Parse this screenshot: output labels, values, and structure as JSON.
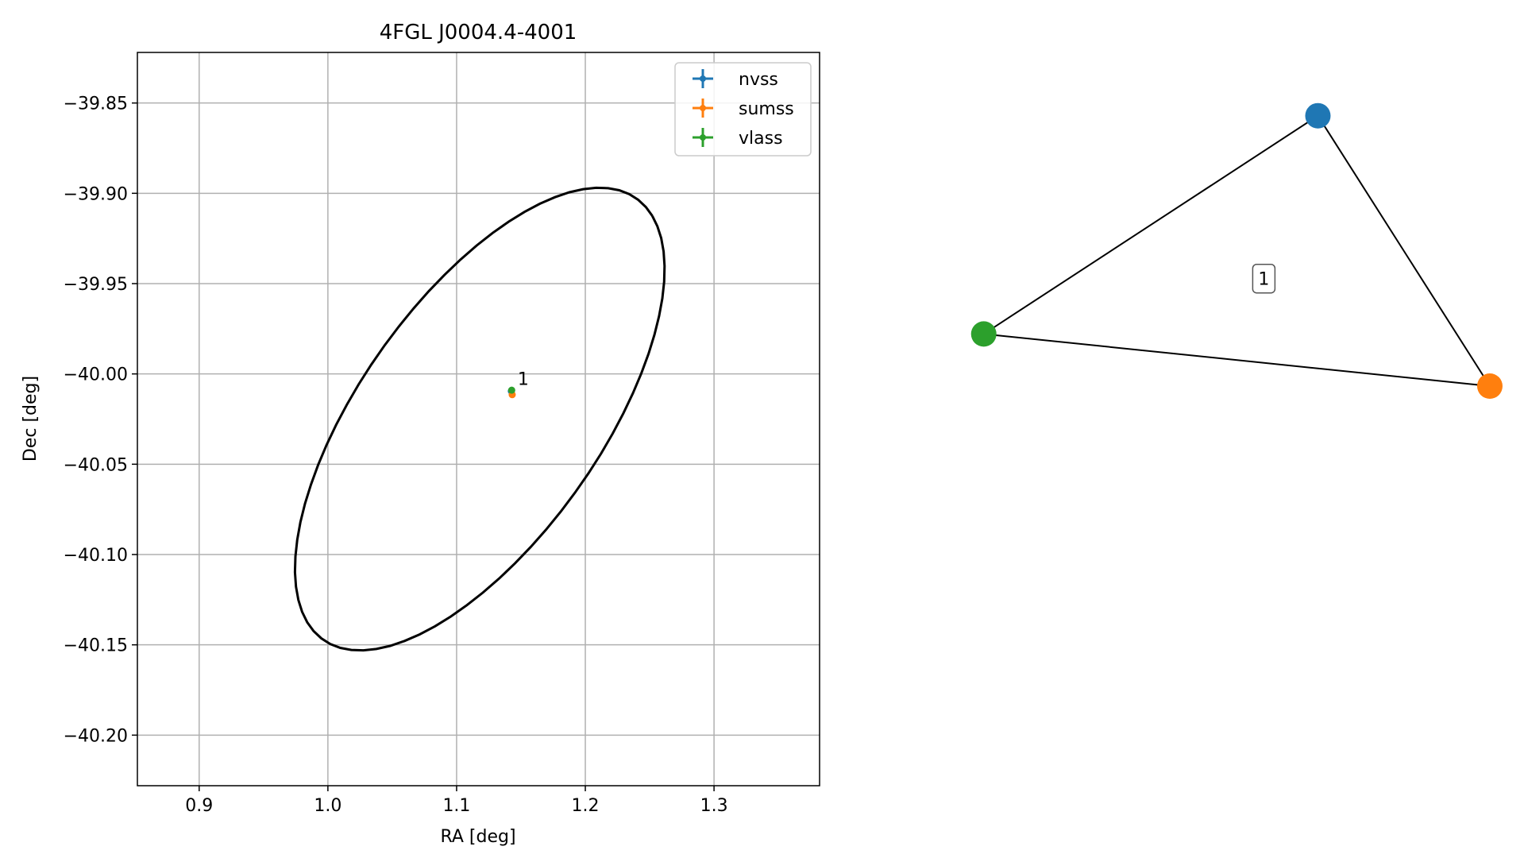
{
  "chart_data": [
    {
      "type": "scatter",
      "title": "4FGL J0004.4-4001",
      "xlabel": "RA [deg]",
      "ylabel": "Dec [deg]",
      "xlim": [
        0.852,
        1.382
      ],
      "ylim": [
        -40.228,
        -39.822
      ],
      "xticks": [
        0.9,
        1.0,
        1.1,
        1.2,
        1.3
      ],
      "xtick_labels": [
        "0.9",
        "1.0",
        "1.1",
        "1.2",
        "1.3"
      ],
      "yticks": [
        -39.85,
        -39.9,
        -39.95,
        -40.0,
        -40.05,
        -40.1,
        -40.15,
        -40.2
      ],
      "ytick_labels": [
        "−39.85",
        "−39.90",
        "−39.95",
        "−40.00",
        "−40.05",
        "−40.10",
        "−40.15",
        "−40.20"
      ],
      "grid": true,
      "legend_position": "top-right",
      "series": [
        {
          "name": "nvss",
          "color": "#1f77b4",
          "x": [
            1.1425
          ],
          "y": [
            -40.0095
          ]
        },
        {
          "name": "sumss",
          "color": "#ff7f0e",
          "x": [
            1.1432
          ],
          "y": [
            -40.0115
          ]
        },
        {
          "name": "vlass",
          "color": "#2ca02c",
          "x": [
            1.1428
          ],
          "y": [
            -40.009
          ]
        }
      ],
      "annotations": [
        {
          "text": "1",
          "x": 1.1475,
          "y": -40.006
        }
      ],
      "ellipse": {
        "center": [
          1.118,
          -40.025
        ],
        "semi_axes": [
          0.175,
          0.08
        ],
        "angle_deg": 40,
        "color": "#000000"
      }
    },
    {
      "type": "network",
      "nodes": [
        {
          "id": "nvss",
          "color": "#1f77b4",
          "x": 0.35,
          "y": 0.88
        },
        {
          "id": "sumss",
          "color": "#ff7f0e",
          "x": 0.88,
          "y": 0.05
        },
        {
          "id": "vlass",
          "color": "#2ca02c",
          "x": -0.68,
          "y": 0.21
        }
      ],
      "edges": [
        {
          "source": "nvss",
          "target": "vlass"
        },
        {
          "source": "nvss",
          "target": "sumss"
        },
        {
          "source": "vlass",
          "target": "sumss"
        }
      ],
      "label": "1"
    }
  ]
}
